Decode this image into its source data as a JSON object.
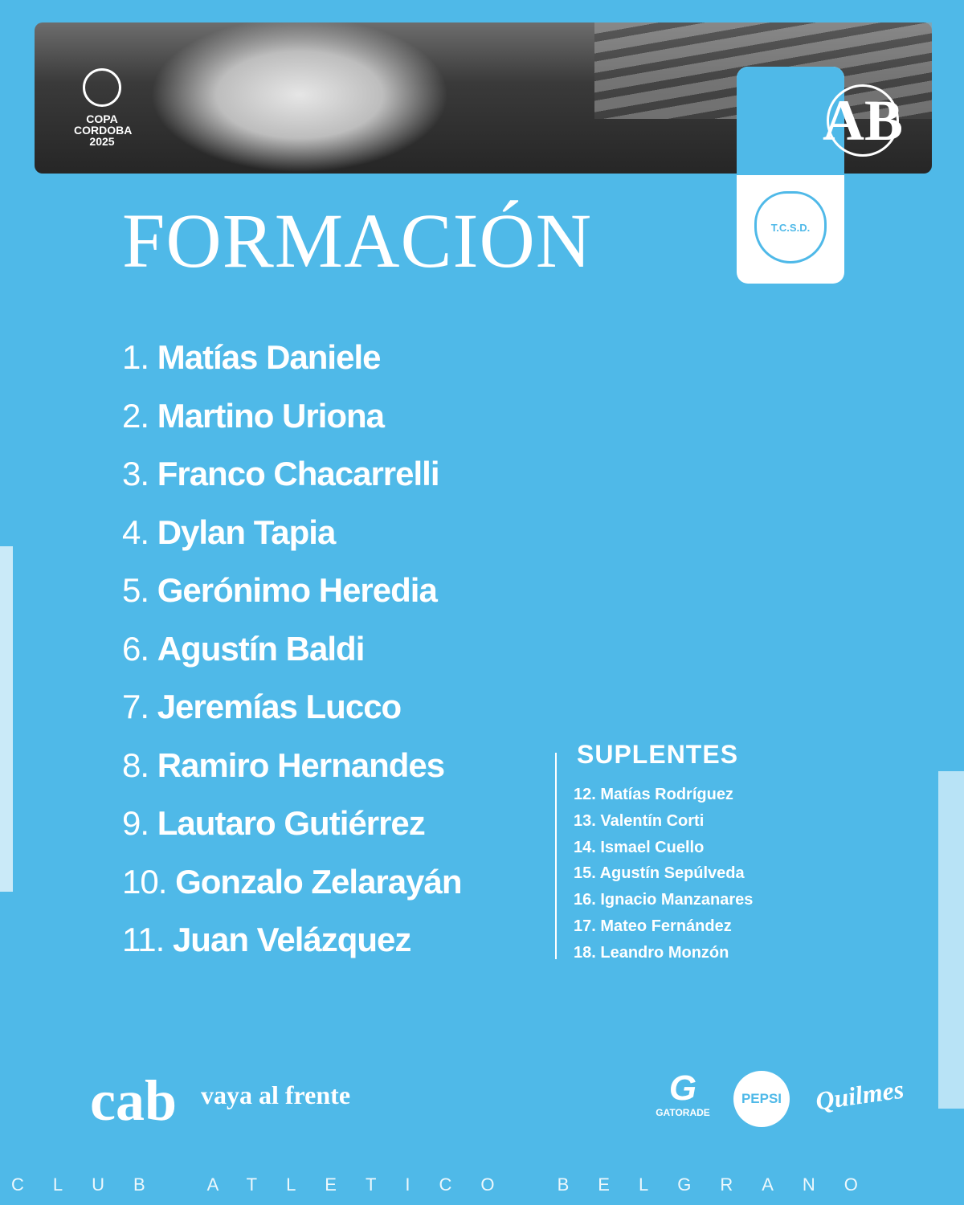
{
  "header": {
    "competition_logo": "COPA CORDOBA 2025",
    "club_crest": "CLUB ATLETICO BELGRANO CORDOBA",
    "opponent_crest": "T.C.S.D."
  },
  "title": "FORMACIÓN",
  "starters": [
    {
      "number": "1.",
      "name": "Matías Daniele"
    },
    {
      "number": "2.",
      "name": "Martino Uriona"
    },
    {
      "number": "3.",
      "name": "Franco Chacarrelli"
    },
    {
      "number": "4.",
      "name": "Dylan Tapia"
    },
    {
      "number": "5.",
      "name": "Gerónimo Heredia"
    },
    {
      "number": "6.",
      "name": "Agustín Baldi"
    },
    {
      "number": "7.",
      "name": "Jeremías Lucco"
    },
    {
      "number": "8.",
      "name": "Ramiro Hernandes"
    },
    {
      "number": "9.",
      "name": "Lautaro Gutiérrez"
    },
    {
      "number": "10.",
      "name": "Gonzalo Zelarayán"
    },
    {
      "number": "11.",
      "name": "Juan Velázquez"
    }
  ],
  "substitutes": {
    "heading": "SUPLENTES",
    "items": [
      "12. Matías Rodríguez",
      "13. Valentín Corti",
      "14. Ismael Cuello",
      "15. Agustín Sepúlveda",
      "16. Ignacio Manzanares",
      "17. Mateo Fernández",
      "18. Leandro Monzón"
    ]
  },
  "footer": {
    "brand": "cab",
    "slogan": "vaya al frente",
    "sponsors": [
      "GATORADE",
      "PEPSI",
      "Quilmes"
    ],
    "club_name": "CLUB ATLETICO BELGRANO"
  },
  "colors": {
    "background": "#4fb9e8",
    "text": "#ffffff"
  }
}
